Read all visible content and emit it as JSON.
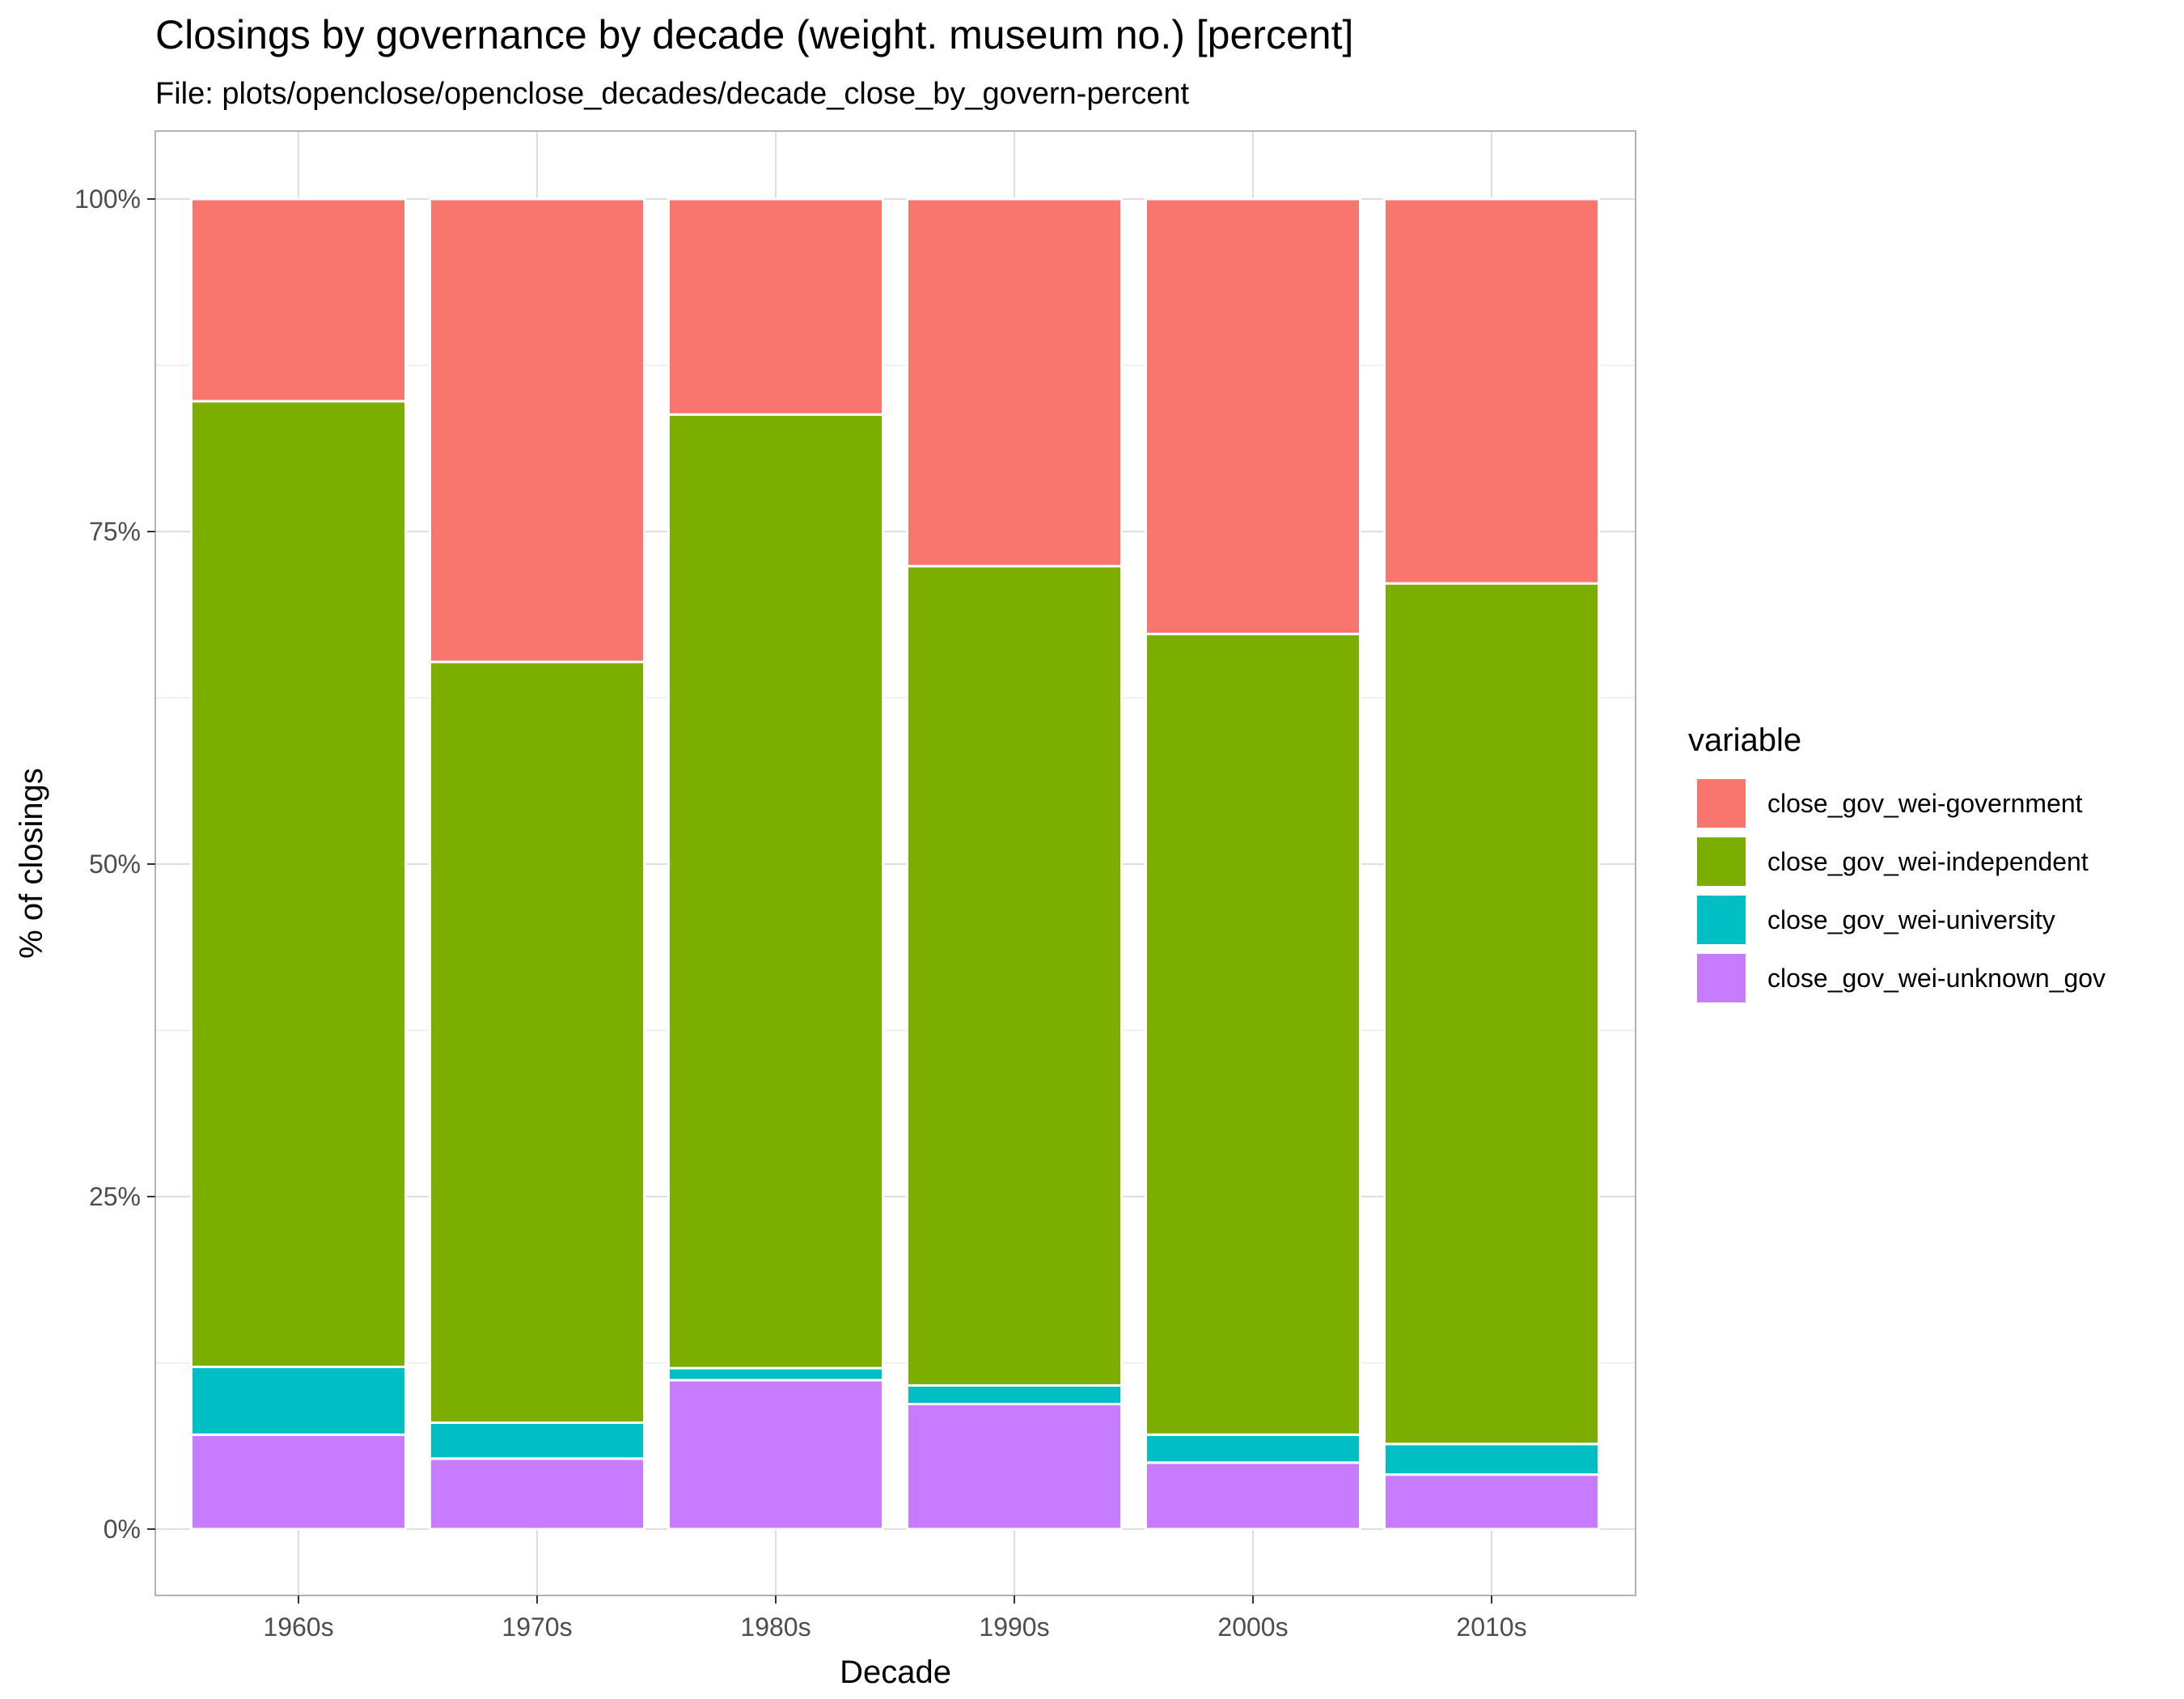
{
  "chart_data": {
    "type": "bar",
    "stacked": true,
    "title": "Closings by governance by decade (weight. museum no.) [percent]",
    "subtitle": "File: plots/openclose/openclose_decades/decade_close_by_govern-percent",
    "xlabel": "Decade",
    "ylabel": "% of closings",
    "ylim": [
      0,
      100
    ],
    "yticks": [
      "0%",
      "25%",
      "50%",
      "75%",
      "100%"
    ],
    "ytick_values": [
      0,
      25,
      50,
      75,
      100
    ],
    "grid": true,
    "legend_title": "variable",
    "legend_position": "right",
    "categories": [
      "1960s",
      "1970s",
      "1980s",
      "1990s",
      "2000s",
      "2010s"
    ],
    "series": [
      {
        "name": "close_gov_wei-unknown_gov",
        "color": "#C77CFF",
        "values": [
          7.1,
          5.3,
          11.2,
          9.4,
          5.0,
          4.1
        ]
      },
      {
        "name": "close_gov_wei-university",
        "color": "#00BFC4",
        "values": [
          5.1,
          2.7,
          0.9,
          1.4,
          2.1,
          2.3
        ]
      },
      {
        "name": "close_gov_wei-independent",
        "color": "#7CAE00",
        "values": [
          72.6,
          57.2,
          71.7,
          61.6,
          60.2,
          64.7
        ]
      },
      {
        "name": "close_gov_wei-government",
        "color": "#F8766D",
        "values": [
          15.2,
          34.8,
          16.2,
          27.6,
          32.7,
          28.9
        ]
      }
    ],
    "legend_order": [
      "close_gov_wei-government",
      "close_gov_wei-independent",
      "close_gov_wei-university",
      "close_gov_wei-unknown_gov"
    ]
  }
}
